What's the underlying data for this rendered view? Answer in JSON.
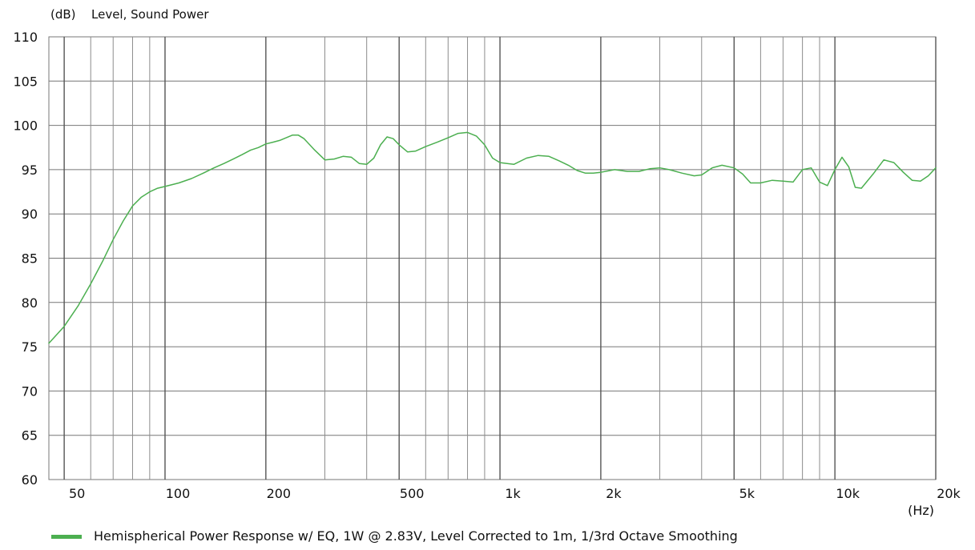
{
  "chart_data": {
    "type": "line",
    "title": "Level, Sound Power",
    "ylabel": "(dB)",
    "xlabel": "(Hz)",
    "x_scale": "log",
    "xlim": [
      45,
      20000
    ],
    "ylim": [
      60,
      110
    ],
    "grid": true,
    "x_ticks": [
      {
        "value": 50,
        "label": "50"
      },
      {
        "value": 100,
        "label": "100"
      },
      {
        "value": 200,
        "label": "200"
      },
      {
        "value": 500,
        "label": "500"
      },
      {
        "value": 1000,
        "label": "1k"
      },
      {
        "value": 2000,
        "label": "2k"
      },
      {
        "value": 5000,
        "label": "5k"
      },
      {
        "value": 10000,
        "label": "10k"
      },
      {
        "value": 20000,
        "label": "20k"
      }
    ],
    "x_minor_gridlines": [
      60,
      70,
      80,
      90,
      300,
      400,
      600,
      700,
      800,
      900,
      3000,
      4000,
      6000,
      7000,
      8000,
      9000
    ],
    "y_ticks": [
      60,
      65,
      70,
      75,
      80,
      85,
      90,
      95,
      100,
      105,
      110
    ],
    "legend_position": "bottom-left",
    "series": [
      {
        "name": "Hemispherical Power Response w/ EQ, 1W @ 2.83V, Level Corrected to 1m, 1/3rd Octave Smoothing",
        "color": "#4caf50",
        "x": [
          45,
          50,
          55,
          60,
          65,
          70,
          75,
          80,
          85,
          90,
          95,
          100,
          110,
          120,
          130,
          140,
          150,
          160,
          170,
          180,
          190,
          200,
          210,
          220,
          230,
          240,
          250,
          260,
          280,
          300,
          320,
          340,
          360,
          380,
          400,
          420,
          440,
          460,
          480,
          500,
          530,
          560,
          600,
          650,
          700,
          750,
          800,
          850,
          900,
          950,
          1000,
          1100,
          1200,
          1300,
          1400,
          1500,
          1600,
          1700,
          1800,
          1900,
          2000,
          2200,
          2400,
          2600,
          2800,
          3000,
          3200,
          3500,
          3800,
          4000,
          4300,
          4600,
          5000,
          5300,
          5600,
          6000,
          6500,
          7000,
          7500,
          8000,
          8500,
          9000,
          9500,
          10000,
          10500,
          11000,
          11500,
          12000,
          13000,
          14000,
          15000,
          16000,
          17000,
          18000,
          19000,
          20000
        ],
        "y": [
          75.4,
          77.3,
          79.6,
          82.1,
          84.6,
          87.1,
          89.2,
          90.9,
          91.9,
          92.5,
          92.9,
          93.1,
          93.5,
          94.0,
          94.6,
          95.2,
          95.7,
          96.2,
          96.7,
          97.2,
          97.5,
          97.9,
          98.1,
          98.3,
          98.6,
          98.9,
          98.9,
          98.5,
          97.2,
          96.1,
          96.2,
          96.5,
          96.4,
          95.7,
          95.6,
          96.3,
          97.8,
          98.7,
          98.5,
          97.8,
          97.0,
          97.1,
          97.6,
          98.1,
          98.6,
          99.1,
          99.2,
          98.8,
          97.8,
          96.3,
          95.8,
          95.6,
          96.3,
          96.6,
          96.5,
          96.0,
          95.5,
          94.9,
          94.6,
          94.6,
          94.7,
          95.0,
          94.8,
          94.8,
          95.1,
          95.2,
          95.0,
          94.6,
          94.3,
          94.4,
          95.2,
          95.5,
          95.2,
          94.5,
          93.5,
          93.5,
          93.8,
          93.7,
          93.6,
          95.0,
          95.2,
          93.6,
          93.2,
          95.0,
          96.4,
          95.3,
          93.0,
          92.9,
          94.5,
          96.1,
          95.8,
          94.7,
          93.8,
          93.7,
          94.3,
          95.2
        ]
      }
    ]
  }
}
